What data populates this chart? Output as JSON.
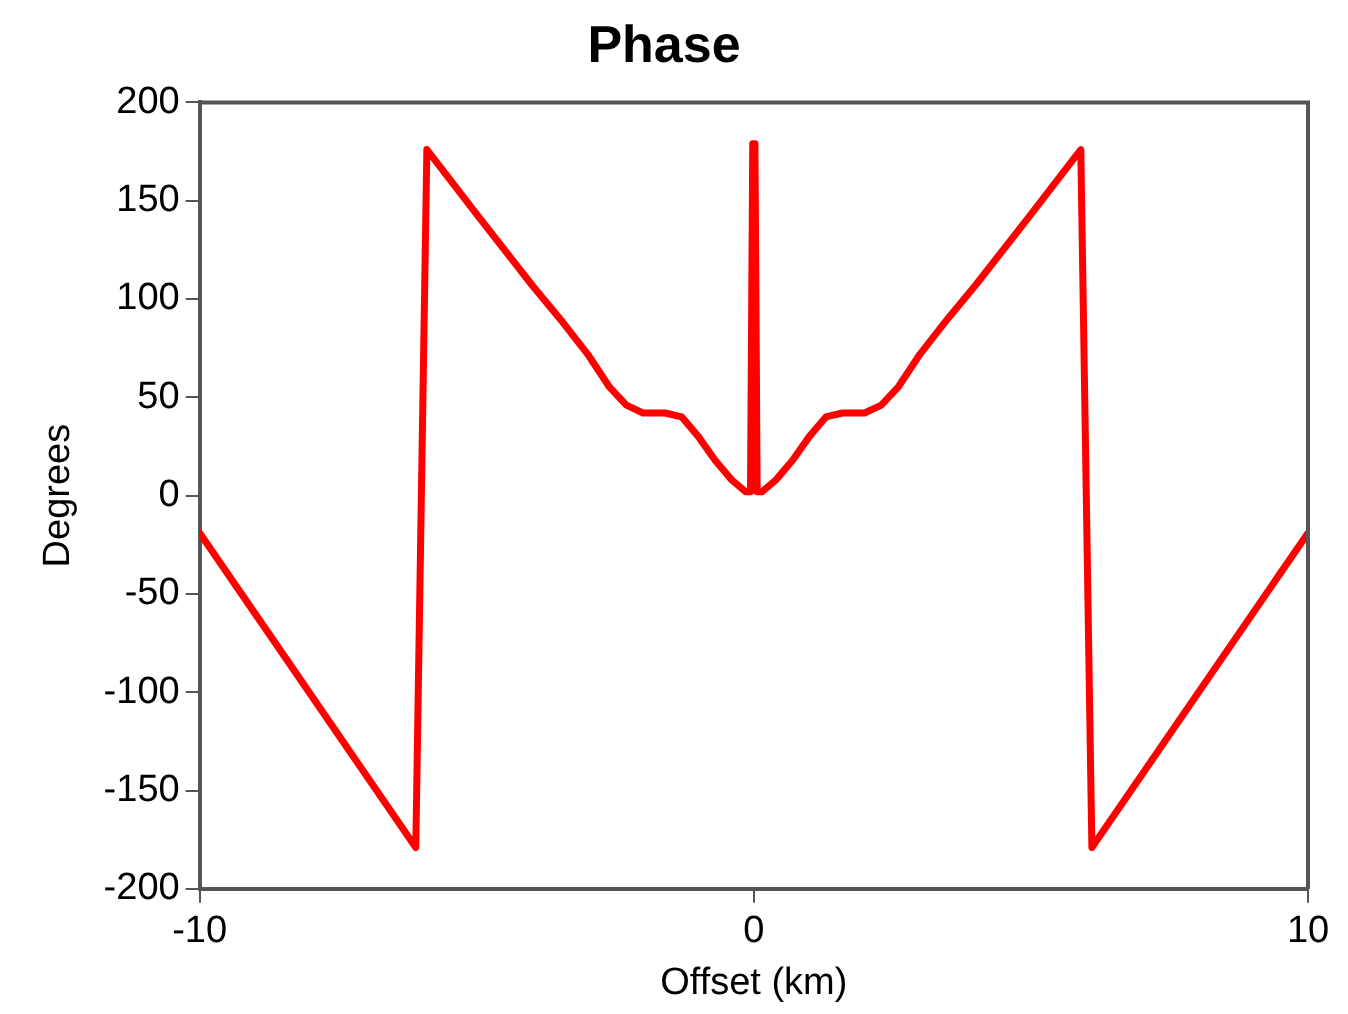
{
  "chart_data": {
    "type": "line",
    "title": "Phase",
    "xlabel": "Offset (km)",
    "ylabel": "Degrees",
    "xlim": [
      -10,
      10
    ],
    "xticks": [
      -10,
      0,
      10
    ],
    "ylim": [
      -200,
      200
    ],
    "yticks": [
      -200,
      -150,
      -100,
      -50,
      0,
      50,
      100,
      150,
      200
    ],
    "grid": false,
    "legend": false,
    "marker": "none",
    "line_style": "solid",
    "series": [
      {
        "color": "#ff0000",
        "x": [
          -10,
          -6.1,
          -5.9,
          -5,
          -4,
          -3.5,
          -3,
          -2.6,
          -2.3,
          -2,
          -1.6,
          -1.3,
          -1,
          -0.7,
          -0.4,
          -0.15,
          -0.06,
          -0.02,
          0.02,
          0.06,
          0.15,
          0.4,
          0.7,
          1,
          1.3,
          1.6,
          2,
          2.3,
          2.6,
          3,
          3.5,
          4,
          5,
          5.9,
          6.1,
          10
        ],
        "values": [
          -19,
          -179,
          176,
          143,
          107,
          90,
          72,
          55,
          46,
          42,
          42,
          40,
          30,
          18,
          8,
          2,
          2,
          179,
          179,
          2,
          2,
          8,
          18,
          30,
          40,
          42,
          42,
          46,
          55,
          72,
          90,
          107,
          143,
          176,
          -179,
          -19
        ]
      }
    ]
  }
}
